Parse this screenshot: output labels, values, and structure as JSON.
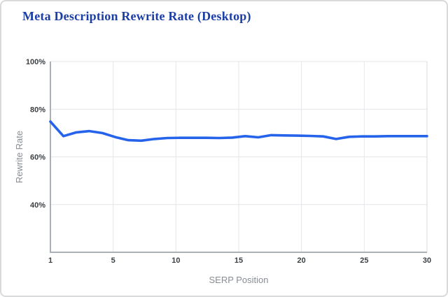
{
  "card": {
    "title": "Meta Description Rewrite Rate (Desktop)",
    "title_color": "#1b3ea6",
    "background": "#ffffff",
    "border_color": "#d9dadc"
  },
  "chart_data": {
    "type": "line",
    "title": "Meta Description Rewrite Rate (Desktop)",
    "xlabel": "SERP Position",
    "ylabel": "Rewrite Rate",
    "x": [
      1,
      2,
      3,
      4,
      5,
      6,
      7,
      8,
      9,
      10,
      11,
      12,
      13,
      14,
      15,
      16,
      17,
      18,
      19,
      20,
      21,
      22,
      23,
      24,
      25,
      26,
      27,
      28,
      29,
      30
    ],
    "series": [
      {
        "name": "Rewrite Rate",
        "values": [
          74.8,
          68.7,
          70.3,
          70.8,
          70.0,
          68.3,
          67.0,
          66.8,
          67.5,
          67.9,
          68.0,
          68.0,
          68.0,
          67.9,
          68.1,
          68.7,
          68.2,
          69.1,
          69.0,
          68.9,
          68.8,
          68.6,
          67.5,
          68.4,
          68.6,
          68.6,
          68.7,
          68.7,
          68.7,
          68.7
        ]
      }
    ],
    "xlim": [
      1,
      30
    ],
    "ylim": [
      20,
      100
    ],
    "x_ticks": [
      1,
      5,
      10,
      15,
      20,
      25,
      30
    ],
    "x_tick_labels": [
      "1",
      "5",
      "10",
      "15",
      "20",
      "25",
      "30"
    ],
    "y_ticks": [
      100,
      80,
      60,
      40
    ],
    "y_tick_labels": [
      "100%",
      "80%",
      "60%",
      "40%"
    ],
    "grid": true,
    "legend_position": "none",
    "colors": {
      "line": "#2563eb",
      "gridline": "#e4e6e9",
      "axis": "#abb0b6",
      "plot_border": "#d6d9dc",
      "tick_label": "#3c4043",
      "axis_title": "#888d93"
    }
  }
}
